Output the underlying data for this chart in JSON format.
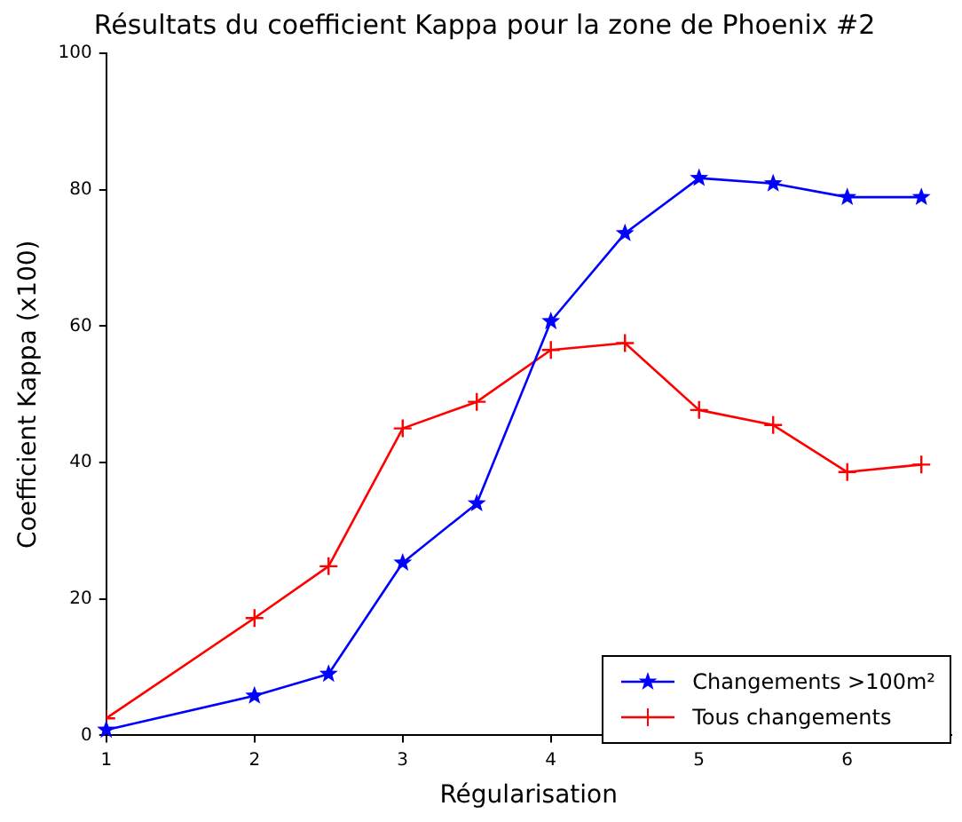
{
  "chart_data": {
    "type": "line",
    "title": "Résultats du coefficient Kappa pour la zone de Phoenix #2",
    "xlabel": "Régularisation",
    "ylabel": "Coefficient Kappa (x100)",
    "xlim": [
      1,
      6.7
    ],
    "xticks": [
      1,
      2,
      3,
      4,
      5,
      6
    ],
    "ylim": [
      0,
      100
    ],
    "yticks": [
      0,
      20,
      40,
      60,
      80,
      100
    ],
    "grid": false,
    "legend": "bottom right",
    "line_style": "solid",
    "series": [
      {
        "name": "Changements >100m²",
        "color": "#0000ff",
        "marker": "star",
        "x": [
          1,
          2,
          2.5,
          3,
          3.5,
          4,
          4.5,
          5,
          5.5,
          6,
          6.5
        ],
        "values": [
          0.8,
          5.8,
          9,
          25.3,
          34,
          60.7,
          73.6,
          81.7,
          80.9,
          78.9,
          78.9
        ]
      },
      {
        "name": "Tous changements",
        "color": "#ff0000",
        "marker": "cross",
        "x": [
          1,
          2,
          2.5,
          3,
          3.5,
          4,
          4.5,
          5,
          5.5,
          6,
          6.5
        ],
        "values": [
          2.5,
          17.2,
          24.8,
          45,
          48.9,
          56.5,
          57.5,
          47.7,
          45.5,
          38.6,
          39.7
        ]
      }
    ]
  }
}
